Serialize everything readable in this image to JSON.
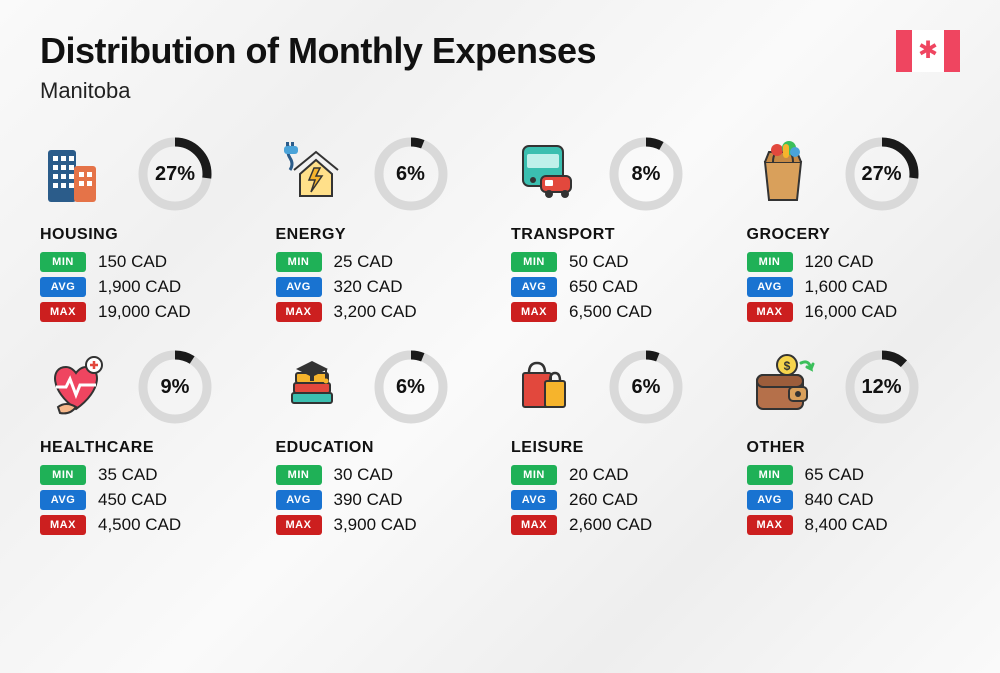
{
  "header": {
    "title": "Distribution of Monthly Expenses",
    "subtitle": "Manitoba"
  },
  "style": {
    "donut_bg": "#d9d9d9",
    "donut_fg": "#1a1a1a",
    "donut_stroke_width": 9,
    "tag_min_bg": "#1fb157",
    "tag_avg_bg": "#1973d1",
    "tag_max_bg": "#cc1f1f",
    "flag_red": "#ef4560",
    "title_fontsize": 36,
    "subtitle_fontsize": 22,
    "pct_fontsize": 20,
    "cat_fontsize": 16,
    "val_fontsize": 17
  },
  "labels": {
    "min": "MIN",
    "avg": "AVG",
    "max": "MAX"
  },
  "categories": [
    {
      "name": "HOUSING",
      "icon": "buildings-icon",
      "percent": 27,
      "min": "150 CAD",
      "avg": "1,900 CAD",
      "max": "19,000 CAD"
    },
    {
      "name": "ENERGY",
      "icon": "energy-icon",
      "percent": 6,
      "min": "25 CAD",
      "avg": "320 CAD",
      "max": "3,200 CAD"
    },
    {
      "name": "TRANSPORT",
      "icon": "transport-icon",
      "percent": 8,
      "min": "50 CAD",
      "avg": "650 CAD",
      "max": "6,500 CAD"
    },
    {
      "name": "GROCERY",
      "icon": "grocery-icon",
      "percent": 27,
      "min": "120 CAD",
      "avg": "1,600 CAD",
      "max": "16,000 CAD"
    },
    {
      "name": "HEALTHCARE",
      "icon": "healthcare-icon",
      "percent": 9,
      "min": "35 CAD",
      "avg": "450 CAD",
      "max": "4,500 CAD"
    },
    {
      "name": "EDUCATION",
      "icon": "education-icon",
      "percent": 6,
      "min": "30 CAD",
      "avg": "390 CAD",
      "max": "3,900 CAD"
    },
    {
      "name": "LEISURE",
      "icon": "leisure-icon",
      "percent": 6,
      "min": "20 CAD",
      "avg": "260 CAD",
      "max": "2,600 CAD"
    },
    {
      "name": "OTHER",
      "icon": "wallet-icon",
      "percent": 12,
      "min": "65 CAD",
      "avg": "840 CAD",
      "max": "8,400 CAD"
    }
  ]
}
